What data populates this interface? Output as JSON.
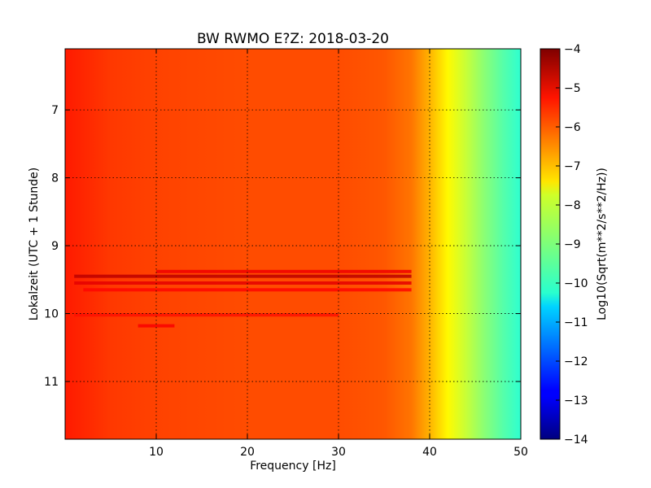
{
  "chart_data": {
    "type": "heatmap",
    "title": "BW RWMO E?Z: 2018-03-20",
    "xlabel": "Frequency [Hz]",
    "ylabel": "Lokalzeit (UTC + 1 Stunde)",
    "xlim": [
      0,
      50
    ],
    "ylim": [
      6.1,
      11.85
    ],
    "y_inverted": true,
    "x_ticks": [
      10,
      20,
      30,
      40,
      50
    ],
    "y_ticks": [
      7,
      8,
      9,
      10,
      11
    ],
    "grid": true,
    "colormap": "jet",
    "colorbar": {
      "label": "Log10(Sqrt(m**2/s**2/Hz))",
      "range": [
        -14,
        -4
      ],
      "ticks": [
        -4,
        -5,
        -6,
        -7,
        -8,
        -9,
        -10,
        -11,
        -12,
        -13,
        -14
      ]
    },
    "frequency_profile": {
      "frequency_hz": [
        0,
        5,
        10,
        15,
        20,
        25,
        30,
        35,
        38,
        40,
        42,
        44,
        46,
        48,
        50
      ],
      "log10_amplitude": [
        -5.5,
        -5.8,
        -5.9,
        -5.95,
        -6.0,
        -6.0,
        -6.0,
        -6.1,
        -6.4,
        -7.0,
        -7.7,
        -8.3,
        -8.9,
        -9.4,
        -9.8
      ]
    },
    "bands": [
      {
        "time": 9.45,
        "freq_range": [
          1,
          38
        ],
        "log10_amplitude": -4.6
      },
      {
        "time": 9.55,
        "freq_range": [
          1,
          38
        ],
        "log10_amplitude": -5.0
      },
      {
        "time": 9.38,
        "freq_range": [
          10,
          38
        ],
        "log10_amplitude": -5.1
      },
      {
        "time": 9.65,
        "freq_range": [
          2,
          38
        ],
        "log10_amplitude": -5.3
      },
      {
        "time": 10.02,
        "freq_range": [
          1,
          30
        ],
        "log10_amplitude": -5.4
      },
      {
        "time": 10.18,
        "freq_range": [
          8,
          12
        ],
        "log10_amplitude": -5.2
      }
    ]
  }
}
